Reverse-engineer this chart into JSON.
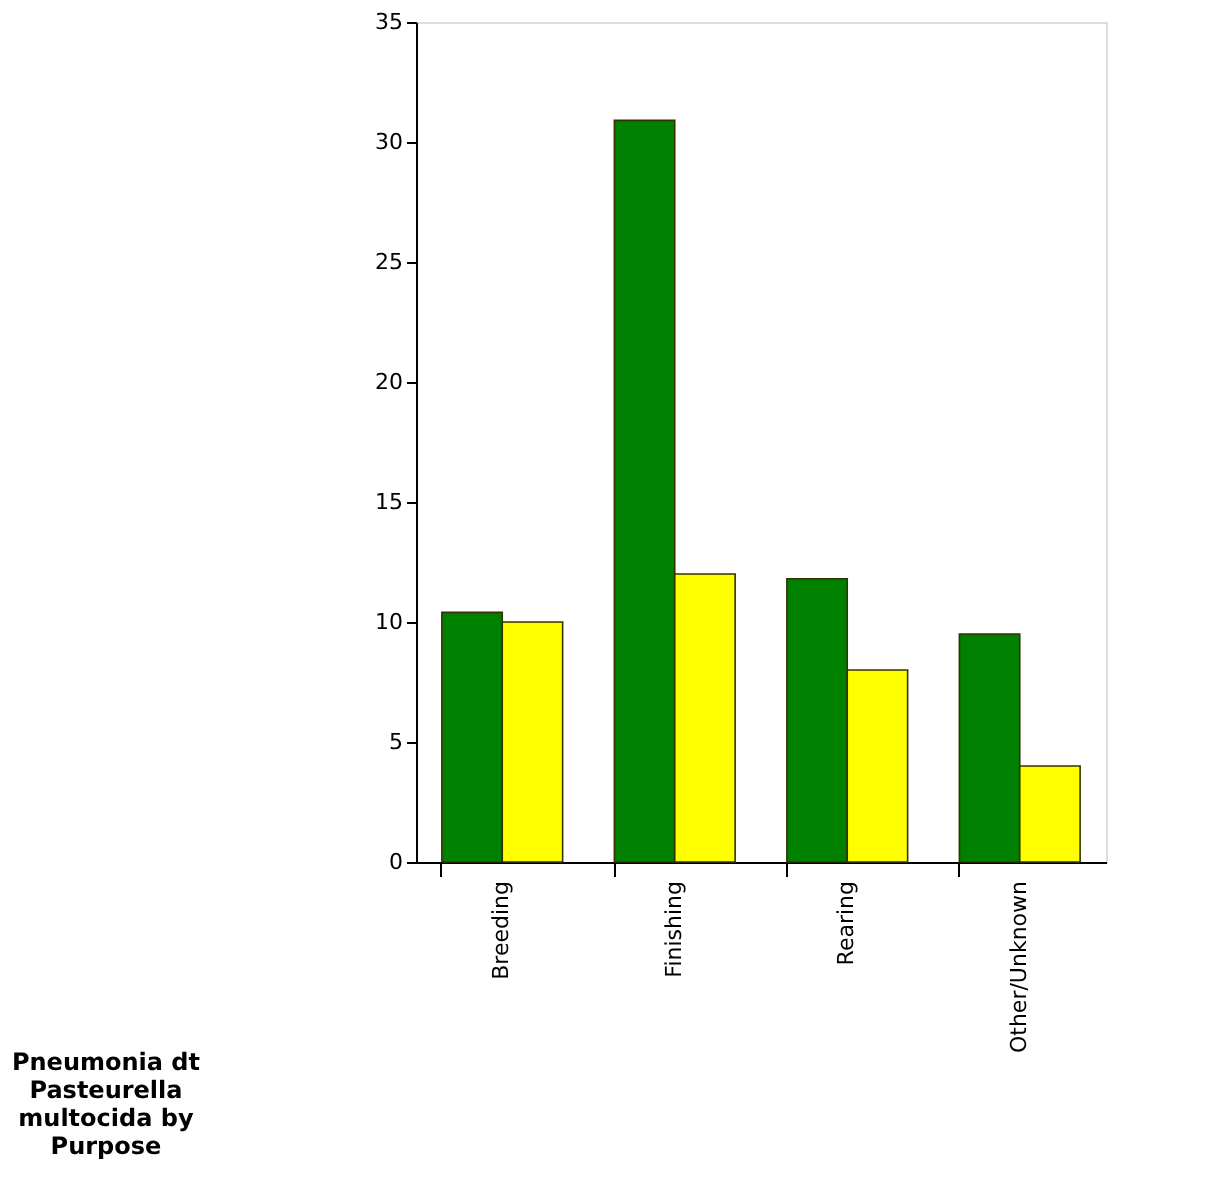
{
  "chart_data": {
    "type": "bar",
    "title": "Pneumonia dt Pasteurella multocida by Purpose",
    "categories": [
      "Breeding",
      "Finishing",
      "Rearing",
      "Other/Unknown"
    ],
    "series": [
      {
        "color": "#008000",
        "values": [
          10.4,
          30.9,
          11.8,
          9.5
        ]
      },
      {
        "color": "#ffff00",
        "values": [
          10,
          12,
          8,
          4
        ]
      }
    ],
    "ylim": [
      0,
      35
    ],
    "yticks": [
      0,
      5,
      10,
      15,
      20,
      25,
      30,
      35
    ],
    "grid": false,
    "legend": false
  }
}
